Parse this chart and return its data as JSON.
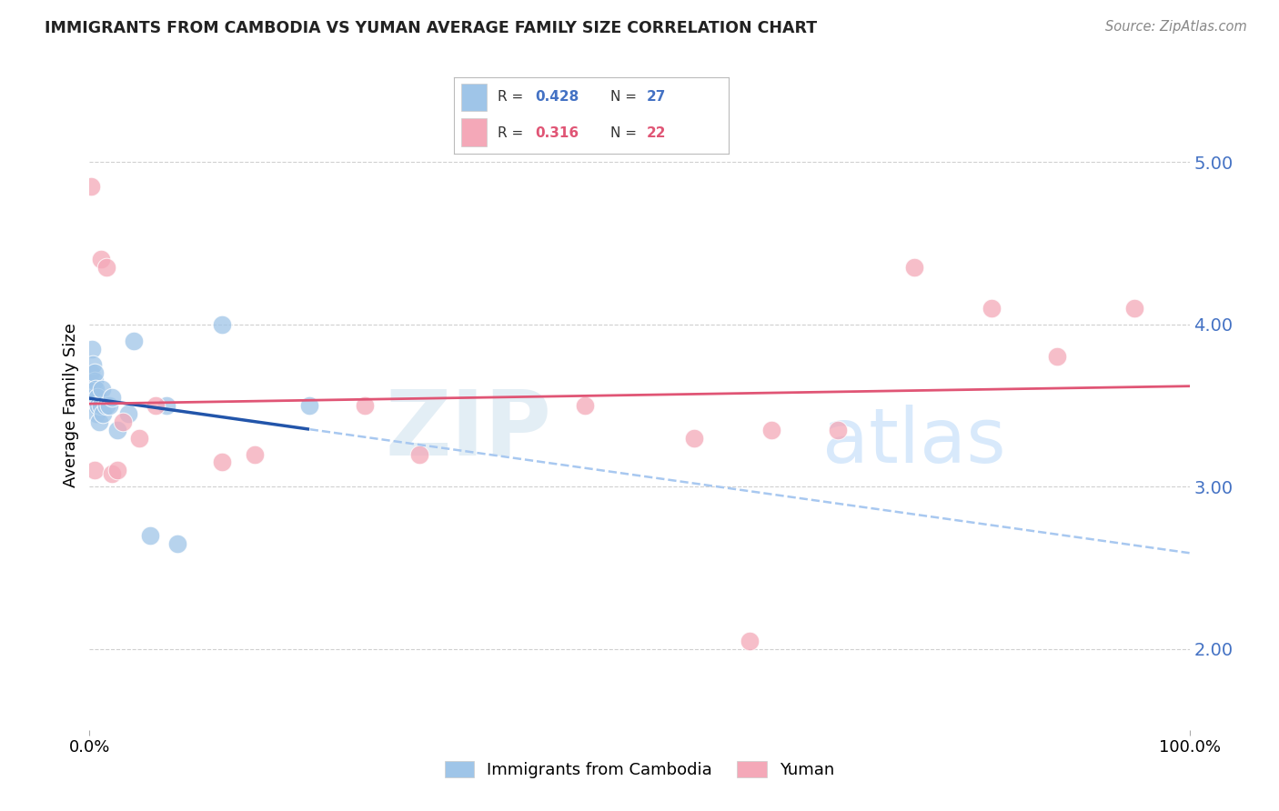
{
  "title": "IMMIGRANTS FROM CAMBODIA VS YUMAN AVERAGE FAMILY SIZE CORRELATION CHART",
  "source": "Source: ZipAtlas.com",
  "ylabel": "Average Family Size",
  "yticks": [
    2.0,
    3.0,
    4.0,
    5.0
  ],
  "ytick_color": "#4472c4",
  "blue_scatter_color": "#9fc5e8",
  "pink_scatter_color": "#f4a8b8",
  "blue_line_color": "#2255aa",
  "pink_line_color": "#e05575",
  "dashed_line_color": "#a8c8f0",
  "wm_zip_color": "#d8e8f5",
  "wm_atlas_color": "#b8d4f0",
  "legend_r1_val": "0.428",
  "legend_n1_val": "27",
  "legend_r2_val": "0.316",
  "legend_n2_val": "22",
  "legend_blue": "#4472c4",
  "legend_pink": "#e05575",
  "cambodia_x": [
    0.15,
    0.25,
    0.3,
    0.35,
    0.4,
    0.45,
    0.5,
    0.55,
    0.6,
    0.65,
    0.7,
    0.8,
    0.9,
    1.0,
    1.1,
    1.2,
    1.5,
    1.8,
    2.0,
    2.5,
    3.5,
    4.0,
    5.5,
    7.0,
    8.0,
    12.0,
    20.0
  ],
  "cambodia_y": [
    3.7,
    3.85,
    3.75,
    3.6,
    3.55,
    3.65,
    3.7,
    3.6,
    3.5,
    3.45,
    3.55,
    3.5,
    3.4,
    3.5,
    3.6,
    3.45,
    3.5,
    3.5,
    3.55,
    3.35,
    3.45,
    3.9,
    2.7,
    3.5,
    2.65,
    4.0,
    3.5
  ],
  "yuman_x": [
    0.1,
    0.5,
    1.0,
    1.5,
    2.0,
    2.5,
    3.0,
    4.5,
    6.0,
    12.0,
    15.0,
    25.0,
    30.0,
    45.0,
    55.0,
    60.0,
    62.0,
    68.0,
    75.0,
    82.0,
    88.0,
    95.0
  ],
  "yuman_y": [
    4.85,
    3.1,
    4.4,
    4.35,
    3.08,
    3.1,
    3.4,
    3.3,
    3.5,
    3.15,
    3.2,
    3.5,
    3.2,
    3.5,
    3.3,
    2.05,
    3.35,
    3.35,
    4.35,
    4.1,
    3.8,
    4.1
  ],
  "xlim": [
    0,
    100
  ],
  "ylim": [
    1.5,
    5.5
  ],
  "grid_color": "#d0d0d0"
}
